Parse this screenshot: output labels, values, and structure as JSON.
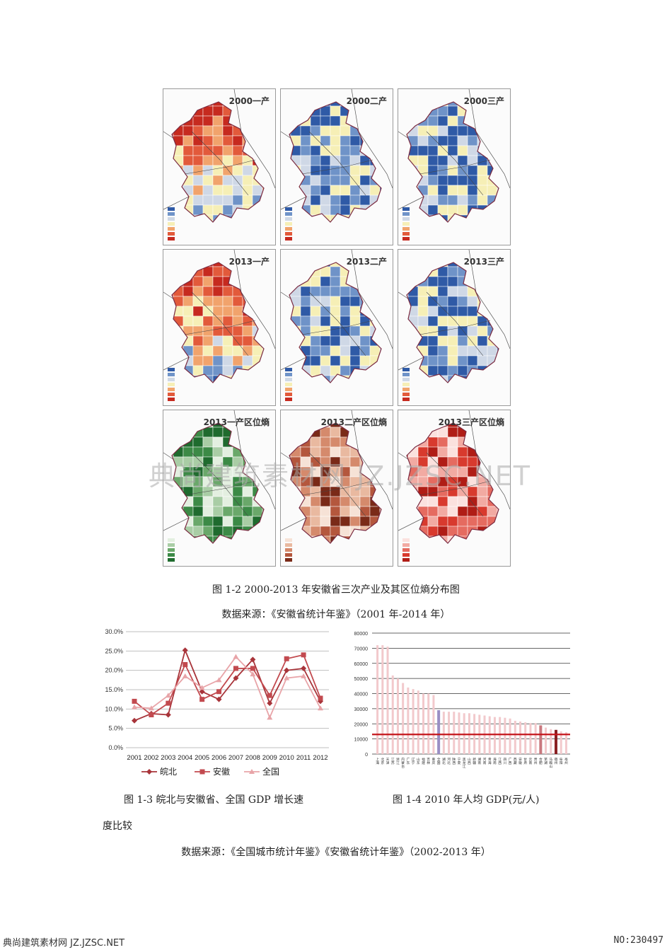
{
  "maps": [
    {
      "title": "2000一产",
      "palette": "rb"
    },
    {
      "title": "2000二产",
      "palette": "rb"
    },
    {
      "title": "2000三产",
      "palette": "rb"
    },
    {
      "title": "2013一产",
      "palette": "rb"
    },
    {
      "title": "2013二产",
      "palette": "rb"
    },
    {
      "title": "2013三产",
      "palette": "rb"
    },
    {
      "title": "2013一产区位熵",
      "palette": "green"
    },
    {
      "title": "2013二产区位熵",
      "palette": "brown"
    },
    {
      "title": "2013三产区位熵",
      "palette": "red"
    }
  ],
  "colors": {
    "rb": [
      "#2f5aa6",
      "#6f93c8",
      "#cfd8e6",
      "#f6efb6",
      "#f1a36c",
      "#e25a3b",
      "#c62a1f"
    ],
    "green": [
      "#e3efe0",
      "#a9cda5",
      "#6aa86a",
      "#3c8a46",
      "#1f6b2e"
    ],
    "brown": [
      "#f6e2d6",
      "#e9b9a0",
      "#d58a6c",
      "#b4573d",
      "#7a2a18"
    ],
    "red": [
      "#fbe1de",
      "#f2aaa2",
      "#e56b60",
      "#d83a2e",
      "#b01d16"
    ]
  },
  "figure_1_2_caption": "图  1-2 2000-2013 年安徽省三次产业及其区位熵分布图",
  "source_1": "数据来源：《安徽省统计年鉴》（2001 年-2014 年）",
  "chart_data": [
    {
      "type": "line",
      "x": [
        "2001",
        "2002",
        "2003",
        "2004",
        "2005",
        "2006",
        "2007",
        "2008",
        "2009",
        "2010",
        "2011",
        "2012"
      ],
      "y_ticks": [
        "30.0%",
        "25.0%",
        "20.0%",
        "15.0%",
        "10.0%",
        "5.0%",
        "0.0%"
      ],
      "ylim": [
        0,
        30
      ],
      "series": [
        {
          "name": "皖北",
          "color": "#a8343a",
          "marker": "diamond",
          "values": [
            7.0,
            8.8,
            8.5,
            25.2,
            14.5,
            12.5,
            18.0,
            22.8,
            11.5,
            20.0,
            20.5,
            12.0
          ]
        },
        {
          "name": "安徽",
          "color": "#c24a4f",
          "marker": "square",
          "values": [
            12.0,
            8.5,
            11.5,
            21.5,
            12.5,
            14.5,
            20.5,
            20.5,
            13.5,
            23.0,
            24.0,
            12.8
          ]
        },
        {
          "name": "全国",
          "color": "#e8a4a8",
          "marker": "triangle",
          "values": [
            10.5,
            10.2,
            13.5,
            18.5,
            15.5,
            17.5,
            23.5,
            19.0,
            7.8,
            18.0,
            18.5,
            10.2
          ]
        }
      ]
    },
    {
      "type": "bar",
      "y_ticks": [
        "80000",
        "70000",
        "60000",
        "50000",
        "40000",
        "30000",
        "20000",
        "10000",
        "0"
      ],
      "ylim": [
        0,
        80000
      ],
      "reference_line": 13000,
      "values": [
        72000,
        72000,
        71000,
        52000,
        50000,
        47000,
        44000,
        43000,
        42000,
        40000,
        40000,
        39000,
        29000,
        28000,
        28000,
        28000,
        27500,
        27000,
        27000,
        26500,
        26000,
        25500,
        25000,
        24500,
        24500,
        24000,
        23500,
        22000,
        21500,
        21000,
        20500,
        20500,
        19000,
        17500,
        16500,
        16000,
        15000,
        14500
      ],
      "highlight": {
        "12": "#9a8ec4",
        "32": "#c9787e",
        "35": "#8a1f22"
      },
      "categories": [
        "上海",
        "北京",
        "天津",
        "江苏",
        "浙江",
        "内蒙古",
        "广东",
        "辽宁",
        "山东",
        "福建",
        "吉林",
        "重庆",
        "全国",
        "湖北",
        "河北",
        "陕西",
        "宁夏",
        "黑龙江",
        "山西",
        "新疆",
        "湖南",
        "河南",
        "青海",
        "海南",
        "江西",
        "四川",
        "广西",
        "西藏",
        "安徽",
        "甘肃",
        "云南",
        "贵州",
        "合肥",
        "芜湖",
        "马鞍山",
        "宿州",
        "阜阳",
        "亳州"
      ]
    }
  ],
  "legend_labels": [
    "皖北",
    "安徽",
    "全国"
  ],
  "figure_1_3_caption_a": "图  1-3 皖北与安徽省、全国 GDP 增长速",
  "figure_1_3_caption_b": "度比较",
  "figure_1_4_caption": "图  1-4 2010 年人均 GDP(元/人)",
  "source_2": "数据来源：《全国城市统计年鉴》《安徽省统计年鉴》（2002-2013 年）",
  "watermark": "典尚建筑素材网 JZ.JZSC.NET",
  "footer_left": "典尚建筑素材网 JZ.JZSC.NET",
  "footer_right": "NO:230497"
}
